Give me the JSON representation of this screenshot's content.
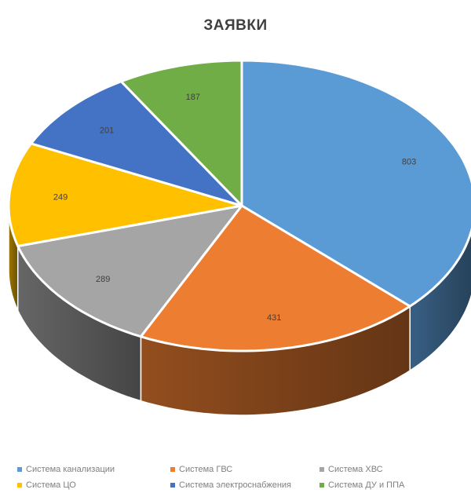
{
  "chart_data": {
    "type": "pie",
    "title": "ЗАЯВКИ",
    "categories": [
      "Система канализации",
      "Система ГВС",
      "Система ХВС",
      "Система ЦО",
      "Система электроснабжения",
      "Система ДУ и ППА"
    ],
    "values": [
      803,
      431,
      289,
      249,
      201,
      187
    ],
    "colors": [
      "#5b9bd5",
      "#ed7d31",
      "#a5a5a5",
      "#ffc000",
      "#4472c4",
      "#70ad47"
    ],
    "legend_position": "bottom",
    "style": "3d",
    "data_labels": true
  }
}
